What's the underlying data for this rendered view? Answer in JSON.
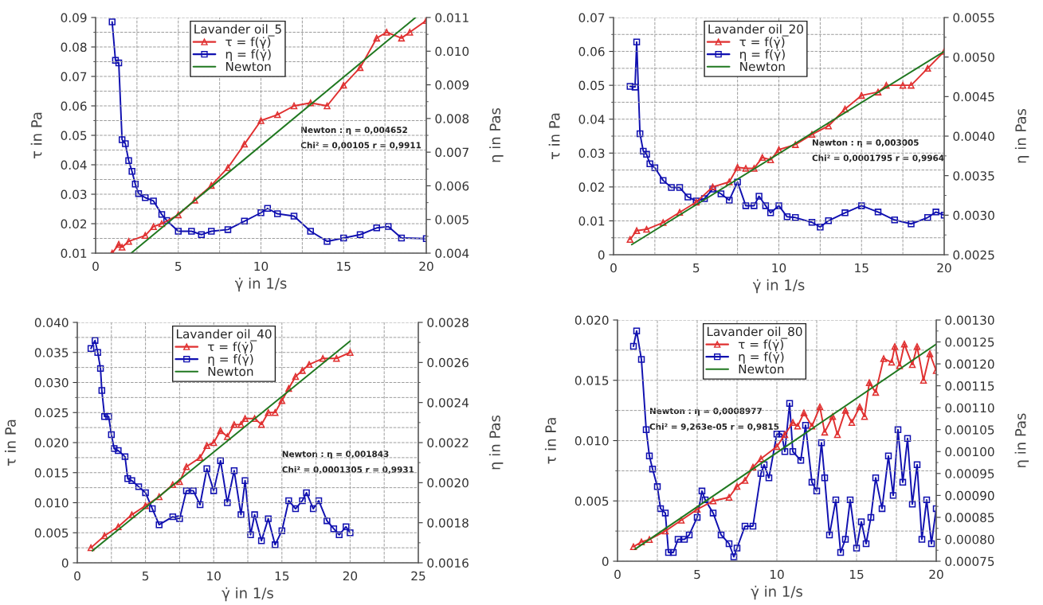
{
  "chart_data": [
    {
      "type": "line",
      "legend_title": "Lavander oil_5",
      "xlabel": "γ̇ in 1/s",
      "ylabel": "τ in Pa",
      "y2label": "η in Pas",
      "legend": "top",
      "grid": true,
      "xlim": [
        0,
        20
      ],
      "xticks": [
        0,
        5,
        10,
        15,
        20
      ],
      "ylim": [
        0.01,
        0.09
      ],
      "yticks": [
        {
          "value": 0.01,
          "label": "0.01"
        },
        {
          "value": 0.02,
          "label": "0.02"
        },
        {
          "value": 0.03,
          "label": "0.03"
        },
        {
          "value": 0.04,
          "label": "0.04"
        },
        {
          "value": 0.05,
          "label": "0.05"
        },
        {
          "value": 0.06,
          "label": "0.06"
        },
        {
          "value": 0.07,
          "label": "0.07"
        },
        {
          "value": 0.08,
          "label": "0.08"
        },
        {
          "value": 0.09,
          "label": "0.09"
        }
      ],
      "y2lim": [
        0.004,
        0.011
      ],
      "y2ticks": [
        {
          "value": 0.004,
          "label": "0.004"
        },
        {
          "value": 0.005,
          "label": "0.005"
        },
        {
          "value": 0.006,
          "label": "0.006"
        },
        {
          "value": 0.007,
          "label": "0.007"
        },
        {
          "value": 0.008,
          "label": "0.008"
        },
        {
          "value": 0.009,
          "label": "0.009"
        },
        {
          "value": 0.01,
          "label": "0.010"
        },
        {
          "value": 0.011,
          "label": "0.011"
        }
      ],
      "annotations": [
        "Newton : η = 0,004652",
        "Chi² = 0,00105 r = 0,9911"
      ],
      "series": [
        {
          "name": "τ = f(γ̇)",
          "color": "#e03030",
          "marker": "triangle",
          "x": [
            1,
            1.4,
            1.6,
            2,
            3,
            3.5,
            4,
            5,
            6,
            7,
            8,
            9,
            10,
            11,
            12,
            13,
            14,
            15,
            16,
            17,
            17.6,
            18.5,
            19,
            20
          ],
          "values": [
            0.01,
            0.013,
            0.012,
            0.014,
            0.016,
            0.019,
            0.02,
            0.023,
            0.028,
            0.033,
            0.039,
            0.047,
            0.055,
            0.057,
            0.06,
            0.061,
            0.06,
            0.067,
            0.073,
            0.083,
            0.085,
            0.083,
            0.085,
            0.089
          ]
        },
        {
          "name": "η = f(γ̇)",
          "color": "#1010b0",
          "marker": "square",
          "axis": "y2",
          "x": [
            1,
            1.2,
            1.4,
            1.6,
            1.8,
            2,
            2.2,
            2.4,
            2.6,
            3,
            3.5,
            4,
            4.3,
            5,
            5.8,
            6.4,
            7,
            8,
            9,
            10,
            10.4,
            11,
            12,
            13,
            14,
            15,
            16,
            17,
            17.7,
            18.5,
            20
          ],
          "values": [
            0.01087,
            0.00973,
            0.00965,
            0.00737,
            0.00725,
            0.00675,
            0.00643,
            0.00605,
            0.00577,
            0.00565,
            0.00555,
            0.00515,
            0.00497,
            0.00465,
            0.00465,
            0.00455,
            0.00465,
            0.0047,
            0.00495,
            0.0052,
            0.00533,
            0.00517,
            0.0051,
            0.00465,
            0.00435,
            0.00445,
            0.00455,
            0.00475,
            0.00479,
            0.00445,
            0.00443
          ]
        },
        {
          "name": "Newton",
          "color": "#207820",
          "marker": "none",
          "x": [
            2.15,
            19.35
          ],
          "values": [
            0.01,
            0.09
          ]
        }
      ]
    },
    {
      "type": "line",
      "legend_title": "Lavander oil_20",
      "xlabel": "γ̇ in 1/s",
      "ylabel": "τ in Pa",
      "y2label": "η in Pas",
      "legend": "top",
      "grid": true,
      "xlim": [
        0,
        20
      ],
      "xticks": [
        0,
        5,
        10,
        15,
        20
      ],
      "ylim": [
        0,
        0.07
      ],
      "yticks": [
        0,
        {
          "value": 0.01,
          "label": "0.01"
        },
        {
          "value": 0.02,
          "label": "0.02"
        },
        {
          "value": 0.03,
          "label": "0.03"
        },
        {
          "value": 0.04,
          "label": "0.04"
        },
        {
          "value": 0.05,
          "label": "0.05"
        },
        {
          "value": 0.06,
          "label": "0.06"
        },
        {
          "value": 0.07,
          "label": "0.07"
        }
      ],
      "y2lim": [
        0.0025,
        0.0055
      ],
      "y2ticks": [
        {
          "value": 0.0025,
          "label": "0.0025"
        },
        {
          "value": 0.003,
          "label": "0.0030"
        },
        {
          "value": 0.0035,
          "label": "0.0035"
        },
        {
          "value": 0.004,
          "label": "0.0040"
        },
        {
          "value": 0.0045,
          "label": "0.0045"
        },
        {
          "value": 0.005,
          "label": "0.0050"
        },
        {
          "value": 0.0055,
          "label": "0.0055"
        }
      ],
      "annotations": [
        "Newton : η = 0,003005",
        "Chi² = 0,0001795 r = 0,9964"
      ],
      "series": [
        {
          "name": "τ = f(γ̇)",
          "color": "#e03030",
          "marker": "triangle",
          "x": [
            1,
            1.4,
            2,
            3,
            4,
            5,
            6,
            7,
            7.5,
            8,
            8.5,
            9,
            9.5,
            10,
            11,
            12,
            13,
            14,
            15,
            16,
            16.5,
            17.5,
            18,
            19,
            20
          ],
          "values": [
            0.0045,
            0.0071,
            0.0075,
            0.0095,
            0.0125,
            0.0155,
            0.02,
            0.0215,
            0.0258,
            0.0255,
            0.0255,
            0.0287,
            0.028,
            0.031,
            0.0325,
            0.0355,
            0.038,
            0.043,
            0.047,
            0.048,
            0.05,
            0.05,
            0.05,
            0.055,
            0.06
          ]
        },
        {
          "name": "η = f(γ̇)",
          "color": "#1010b0",
          "marker": "square",
          "axis": "y2",
          "x": [
            1,
            1.3,
            1.4,
            1.6,
            1.8,
            2,
            2.2,
            2.5,
            3,
            3.5,
            4,
            4.5,
            5,
            5.5,
            6,
            6.5,
            7,
            7.5,
            8,
            8.5,
            8.8,
            9.2,
            9.5,
            10,
            10.5,
            11,
            12,
            12.5,
            13,
            14,
            15,
            16,
            17,
            18,
            19,
            19.5,
            20
          ],
          "values": [
            0.00463,
            0.00462,
            0.00519,
            0.00403,
            0.00381,
            0.00377,
            0.00365,
            0.0036,
            0.00344,
            0.00335,
            0.00335,
            0.00323,
            0.00318,
            0.00321,
            0.00333,
            0.00327,
            0.00319,
            0.00342,
            0.00312,
            0.00312,
            0.00324,
            0.00312,
            0.00303,
            0.00312,
            0.00298,
            0.00297,
            0.00291,
            0.00285,
            0.00293,
            0.00303,
            0.00312,
            0.00304,
            0.00294,
            0.00289,
            0.00297,
            0.00304,
            0.003
          ]
        },
        {
          "name": "Newton",
          "color": "#207820",
          "marker": "none",
          "x": [
            1.1,
            20
          ],
          "values": [
            0.003,
            0.06
          ]
        }
      ]
    },
    {
      "type": "line",
      "legend_title": "Lavander oil_40",
      "xlabel": "γ̇ in 1/s",
      "ylabel": "τ in Pa",
      "y2label": "η in Pas",
      "legend": "top",
      "grid": true,
      "xlim": [
        0,
        25
      ],
      "xticks": [
        0,
        5,
        10,
        15,
        20,
        25
      ],
      "ylim": [
        0,
        0.04
      ],
      "yticks": [
        0,
        {
          "value": 0.005,
          "label": "0.005"
        },
        {
          "value": 0.01,
          "label": "0.010"
        },
        {
          "value": 0.015,
          "label": "0.015"
        },
        {
          "value": 0.02,
          "label": "0.020"
        },
        {
          "value": 0.025,
          "label": "0.025"
        },
        {
          "value": 0.03,
          "label": "0.030"
        },
        {
          "value": 0.035,
          "label": "0.035"
        },
        {
          "value": 0.04,
          "label": "0.040"
        }
      ],
      "y2lim": [
        0.0016,
        0.0028
      ],
      "y2ticks": [
        {
          "value": 0.0016,
          "label": "0.0016"
        },
        {
          "value": 0.0018,
          "label": "0.0018"
        },
        {
          "value": 0.002,
          "label": "0.0020"
        },
        {
          "value": 0.0022,
          "label": "0.0022"
        },
        {
          "value": 0.0024,
          "label": "0.0024"
        },
        {
          "value": 0.0026,
          "label": "0.0026"
        },
        {
          "value": 0.0028,
          "label": "0.0028"
        }
      ],
      "annotations": [
        "Newton : η = 0,001843",
        "Chi² = 0,0001305 r = 0,9931"
      ],
      "series": [
        {
          "name": "τ = f(γ̇)",
          "color": "#e03030",
          "marker": "triangle",
          "x": [
            1,
            2,
            3,
            4,
            5,
            6,
            7,
            7.5,
            8,
            9,
            9.5,
            10,
            10.5,
            11,
            11.5,
            12,
            12.3,
            13,
            13.5,
            14,
            14.5,
            15,
            15.5,
            16,
            16.5,
            17,
            18,
            19,
            20
          ],
          "values": [
            0.0025,
            0.0045,
            0.006,
            0.008,
            0.0095,
            0.011,
            0.013,
            0.0135,
            0.016,
            0.0175,
            0.0195,
            0.02,
            0.022,
            0.021,
            0.023,
            0.023,
            0.024,
            0.024,
            0.023,
            0.025,
            0.025,
            0.027,
            0.029,
            0.031,
            0.032,
            0.033,
            0.034,
            0.034,
            0.035
          ]
        },
        {
          "name": "η = f(γ̇)",
          "color": "#1010b0",
          "marker": "square",
          "axis": "y2",
          "x": [
            1,
            1.3,
            1.5,
            1.7,
            1.8,
            2,
            2.3,
            2.5,
            2.7,
            3,
            3.5,
            3.7,
            4,
            4.5,
            5,
            5.5,
            6,
            7,
            7.5,
            8,
            8.5,
            9,
            9.5,
            10,
            10.5,
            11,
            11.5,
            12,
            12.3,
            12.7,
            13,
            13.5,
            14,
            14.5,
            15,
            15.5,
            16,
            16.5,
            16.8,
            17.3,
            17.7,
            18.3,
            18.8,
            19.2,
            19.7,
            20
          ],
          "values": [
            0.00267,
            0.00271,
            0.00265,
            0.00257,
            0.00246,
            0.00233,
            0.00233,
            0.00224,
            0.00217,
            0.00216,
            0.00213,
            0.00202,
            0.00201,
            0.00198,
            0.00195,
            0.00187,
            0.00179,
            0.00183,
            0.00182,
            0.00196,
            0.00196,
            0.00189,
            0.00207,
            0.00196,
            0.00211,
            0.0019,
            0.00206,
            0.00184,
            0.00201,
            0.00174,
            0.00184,
            0.00171,
            0.00182,
            0.00169,
            0.00176,
            0.00191,
            0.00187,
            0.00191,
            0.00195,
            0.00187,
            0.00191,
            0.00181,
            0.00177,
            0.00174,
            0.00178,
            0.00175
          ]
        },
        {
          "name": "Newton",
          "color": "#207820",
          "marker": "none",
          "x": [
            1.1,
            20
          ],
          "values": [
            0.002,
            0.0369
          ]
        }
      ]
    },
    {
      "type": "line",
      "legend_title": "Lavander oil_80",
      "xlabel": "γ̇ in 1/s",
      "ylabel": "τ in Pa",
      "y2label": "η in Pas",
      "legend": "top",
      "grid": true,
      "xlim": [
        0,
        20
      ],
      "xticks": [
        0,
        5,
        10,
        15,
        20
      ],
      "ylim": [
        0,
        0.02
      ],
      "yticks": [
        0,
        {
          "value": 0.005,
          "label": "0.005"
        },
        {
          "value": 0.01,
          "label": "0.010"
        },
        {
          "value": 0.015,
          "label": "0.015"
        },
        {
          "value": 0.02,
          "label": "0.020"
        }
      ],
      "y2lim": [
        0.00075,
        0.0013
      ],
      "y2ticks": [
        {
          "value": 0.00075,
          "label": "0.00075"
        },
        {
          "value": 0.0008,
          "label": "0.00080"
        },
        {
          "value": 0.00085,
          "label": "0.00085"
        },
        {
          "value": 0.0009,
          "label": "0.00090"
        },
        {
          "value": 0.00095,
          "label": "0.00095"
        },
        {
          "value": 0.001,
          "label": "0.00100"
        },
        {
          "value": 0.00105,
          "label": "0.00105"
        },
        {
          "value": 0.0011,
          "label": "0.00110"
        },
        {
          "value": 0.00115,
          "label": "0.00115"
        },
        {
          "value": 0.0012,
          "label": "0.00120"
        },
        {
          "value": 0.00125,
          "label": "0.00125"
        },
        {
          "value": 0.0013,
          "label": "0.00130"
        }
      ],
      "annotations": [
        "Newton : η = 0,0008977",
        "Chi² = 9,263e-05 r = 0,9815"
      ],
      "series": [
        {
          "name": "τ = f(γ̇)",
          "color": "#e03030",
          "marker": "triangle",
          "x": [
            1,
            1.5,
            2,
            3,
            4,
            5,
            6,
            7,
            7.5,
            8,
            8.5,
            9,
            10,
            10.5,
            11,
            11.3,
            11.7,
            12.2,
            12.7,
            13,
            13.5,
            13.8,
            14.3,
            14.7,
            15.2,
            15.5,
            15.8,
            16.2,
            16.7,
            17.2,
            17.4,
            17.7,
            18,
            18.5,
            18.8,
            19.2,
            19.6,
            20
          ],
          "values": [
            0.0012,
            0.0016,
            0.0018,
            0.0025,
            0.0034,
            0.0043,
            0.005,
            0.0053,
            0.0062,
            0.0067,
            0.0078,
            0.0085,
            0.0095,
            0.0105,
            0.0115,
            0.0112,
            0.0123,
            0.0112,
            0.0128,
            0.0107,
            0.012,
            0.0105,
            0.0125,
            0.0115,
            0.0128,
            0.012,
            0.0148,
            0.014,
            0.0168,
            0.0165,
            0.0178,
            0.0162,
            0.018,
            0.0163,
            0.0178,
            0.015,
            0.0172,
            0.0158
          ]
        },
        {
          "name": "η = f(γ̇)",
          "color": "#1010b0",
          "marker": "square",
          "axis": "y2",
          "x": [
            1,
            1.2,
            1.5,
            1.8,
            2,
            2.2,
            2.5,
            2.7,
            3,
            3.2,
            3.5,
            3.8,
            4.2,
            4.5,
            5,
            5.3,
            5.5,
            6,
            6.5,
            7,
            7.3,
            7.5,
            8,
            8.5,
            9,
            9.2,
            9.5,
            10,
            10.3,
            10.5,
            10.8,
            11,
            11.5,
            11.8,
            12.2,
            12.5,
            12.8,
            13,
            13.3,
            13.7,
            14,
            14.3,
            14.6,
            15,
            15.3,
            15.6,
            15.9,
            16.2,
            16.6,
            17,
            17.3,
            17.6,
            17.9,
            18.2,
            18.5,
            18.8,
            19.1,
            19.4,
            19.7,
            20
          ],
          "values": [
            0.00124,
            0.001275,
            0.00121,
            0.00105,
            0.00099,
            0.00096,
            0.00092,
            0.00087,
            0.00086,
            0.00077,
            0.00077,
            0.0008,
            0.0008,
            0.00081,
            0.00085,
            0.00091,
            0.00089,
            0.00086,
            0.00081,
            0.00079,
            0.00076,
            0.00078,
            0.00083,
            0.00083,
            0.00095,
            0.00097,
            0.00094,
            0.00104,
            0.00104,
            0.001,
            0.00111,
            0.001,
            0.00098,
            0.00106,
            0.00093,
            0.00091,
            0.00102,
            0.00094,
            0.00081,
            0.00089,
            0.00077,
            0.0008,
            0.00089,
            0.00078,
            0.00084,
            0.00079,
            0.00085,
            0.00094,
            0.00087,
            0.00099,
            0.0009,
            0.00105,
            0.00093,
            0.00103,
            0.00088,
            0.00097,
            0.0008,
            0.00089,
            0.00079,
            0.00087
          ]
        },
        {
          "name": "Newton",
          "color": "#207820",
          "marker": "none",
          "x": [
            1.1,
            20
          ],
          "values": [
            0.001,
            0.018
          ]
        }
      ]
    }
  ]
}
